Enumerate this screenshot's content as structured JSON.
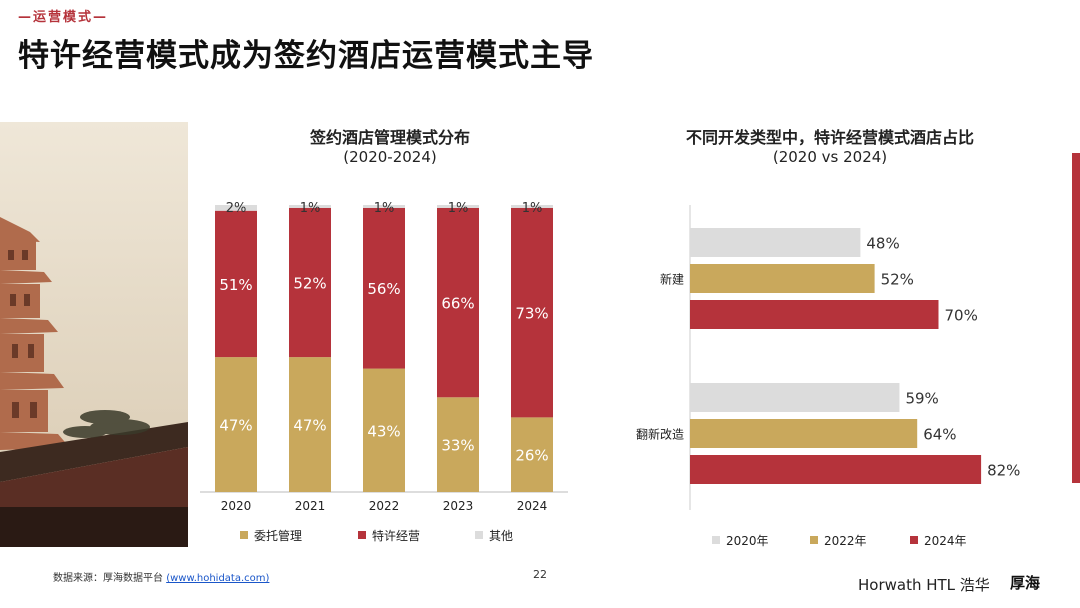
{
  "header": {
    "section_tag": "—运营模式—",
    "title": "特许经营模式成为签约酒店运营模式主导"
  },
  "colors": {
    "red": "#b5333b",
    "gold": "#c9a85c",
    "grey": "#dcdcdc",
    "text": "#1a1a1a"
  },
  "chart_data": [
    {
      "type": "bar",
      "stacked": true,
      "title": "签约酒店管理模式分布",
      "subtitle": "(2020-2024)",
      "categories": [
        "2020",
        "2021",
        "2022",
        "2023",
        "2024"
      ],
      "series": [
        {
          "name": "委托管理",
          "color": "#c9a85c",
          "values": [
            47,
            47,
            43,
            33,
            26
          ],
          "labels": [
            "47%",
            "47%",
            "43%",
            "33%",
            "26%"
          ]
        },
        {
          "name": "特许经营",
          "color": "#b5333b",
          "values": [
            51,
            52,
            56,
            66,
            73
          ],
          "labels": [
            "51%",
            "52%",
            "56%",
            "66%",
            "73%"
          ]
        },
        {
          "name": "其他",
          "color": "#dcdcdc",
          "values": [
            2,
            1,
            1,
            1,
            1
          ],
          "labels": [
            "2%",
            "1%",
            "1%",
            "1%",
            "1%"
          ]
        }
      ],
      "ylim": [
        0,
        100
      ],
      "legend": "bottom"
    },
    {
      "type": "bar",
      "orientation": "horizontal",
      "title": "不同开发类型中，特许经营模式酒店占比",
      "subtitle": "(2020 vs 2024)",
      "categories": [
        "新建",
        "翻新改造"
      ],
      "series": [
        {
          "name": "2020年",
          "color": "#dcdcdc",
          "values": [
            48,
            59
          ],
          "labels": [
            "48%",
            "59%"
          ]
        },
        {
          "name": "2022年",
          "color": "#c9a85c",
          "values": [
            52,
            64
          ],
          "labels": [
            "52%",
            "64%"
          ]
        },
        {
          "name": "2024年",
          "color": "#b5333b",
          "values": [
            70,
            82
          ],
          "labels": [
            "70%",
            "82%"
          ]
        }
      ],
      "xlim": [
        0,
        100
      ],
      "legend": "bottom"
    }
  ],
  "footer": {
    "source_label": "数据来源：厚海数据平台",
    "source_link": "(www.hohidata.com)",
    "page_number": "22",
    "brand_1": "Horwath HTL 浩华",
    "brand_2": "厚海"
  }
}
